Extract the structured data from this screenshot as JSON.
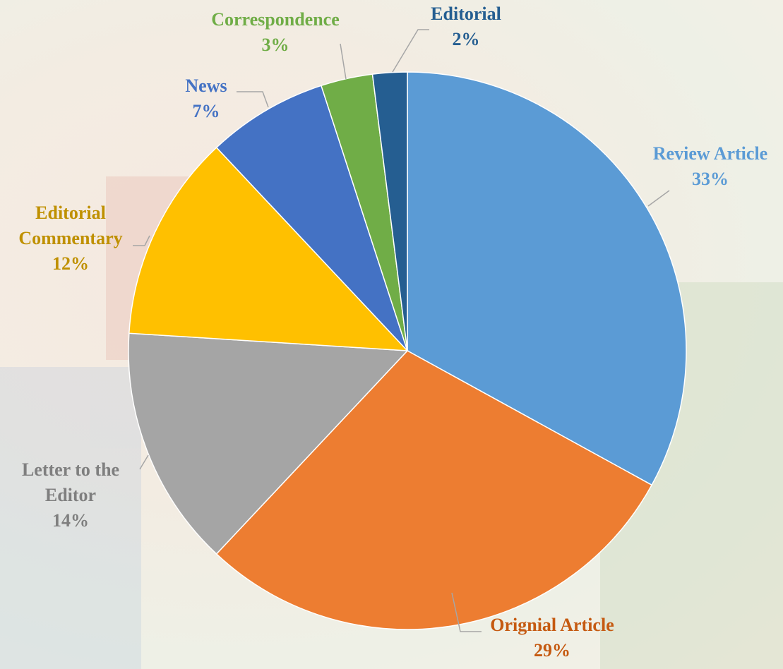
{
  "chart_data": {
    "type": "pie",
    "categories": [
      "Review Article",
      "Orignial Article",
      "Letter to the Editor",
      "Editorial Commentary",
      "News",
      "Correspondence",
      "Editorial"
    ],
    "values": [
      33,
      29,
      14,
      12,
      7,
      3,
      2
    ],
    "value_labels": [
      "33%",
      "29%",
      "14%",
      "12%",
      "7%",
      "3%",
      "2%"
    ],
    "colors": [
      "#5b9bd5",
      "#ed7d31",
      "#a5a5a5",
      "#ffc000",
      "#4472c4",
      "#70ad47",
      "#255e91"
    ],
    "label_colors": [
      "#5b9bd5",
      "#c55a11",
      "#7f7f7f",
      "#bf9000",
      "#4472c4",
      "#70ad47",
      "#255e91"
    ]
  }
}
